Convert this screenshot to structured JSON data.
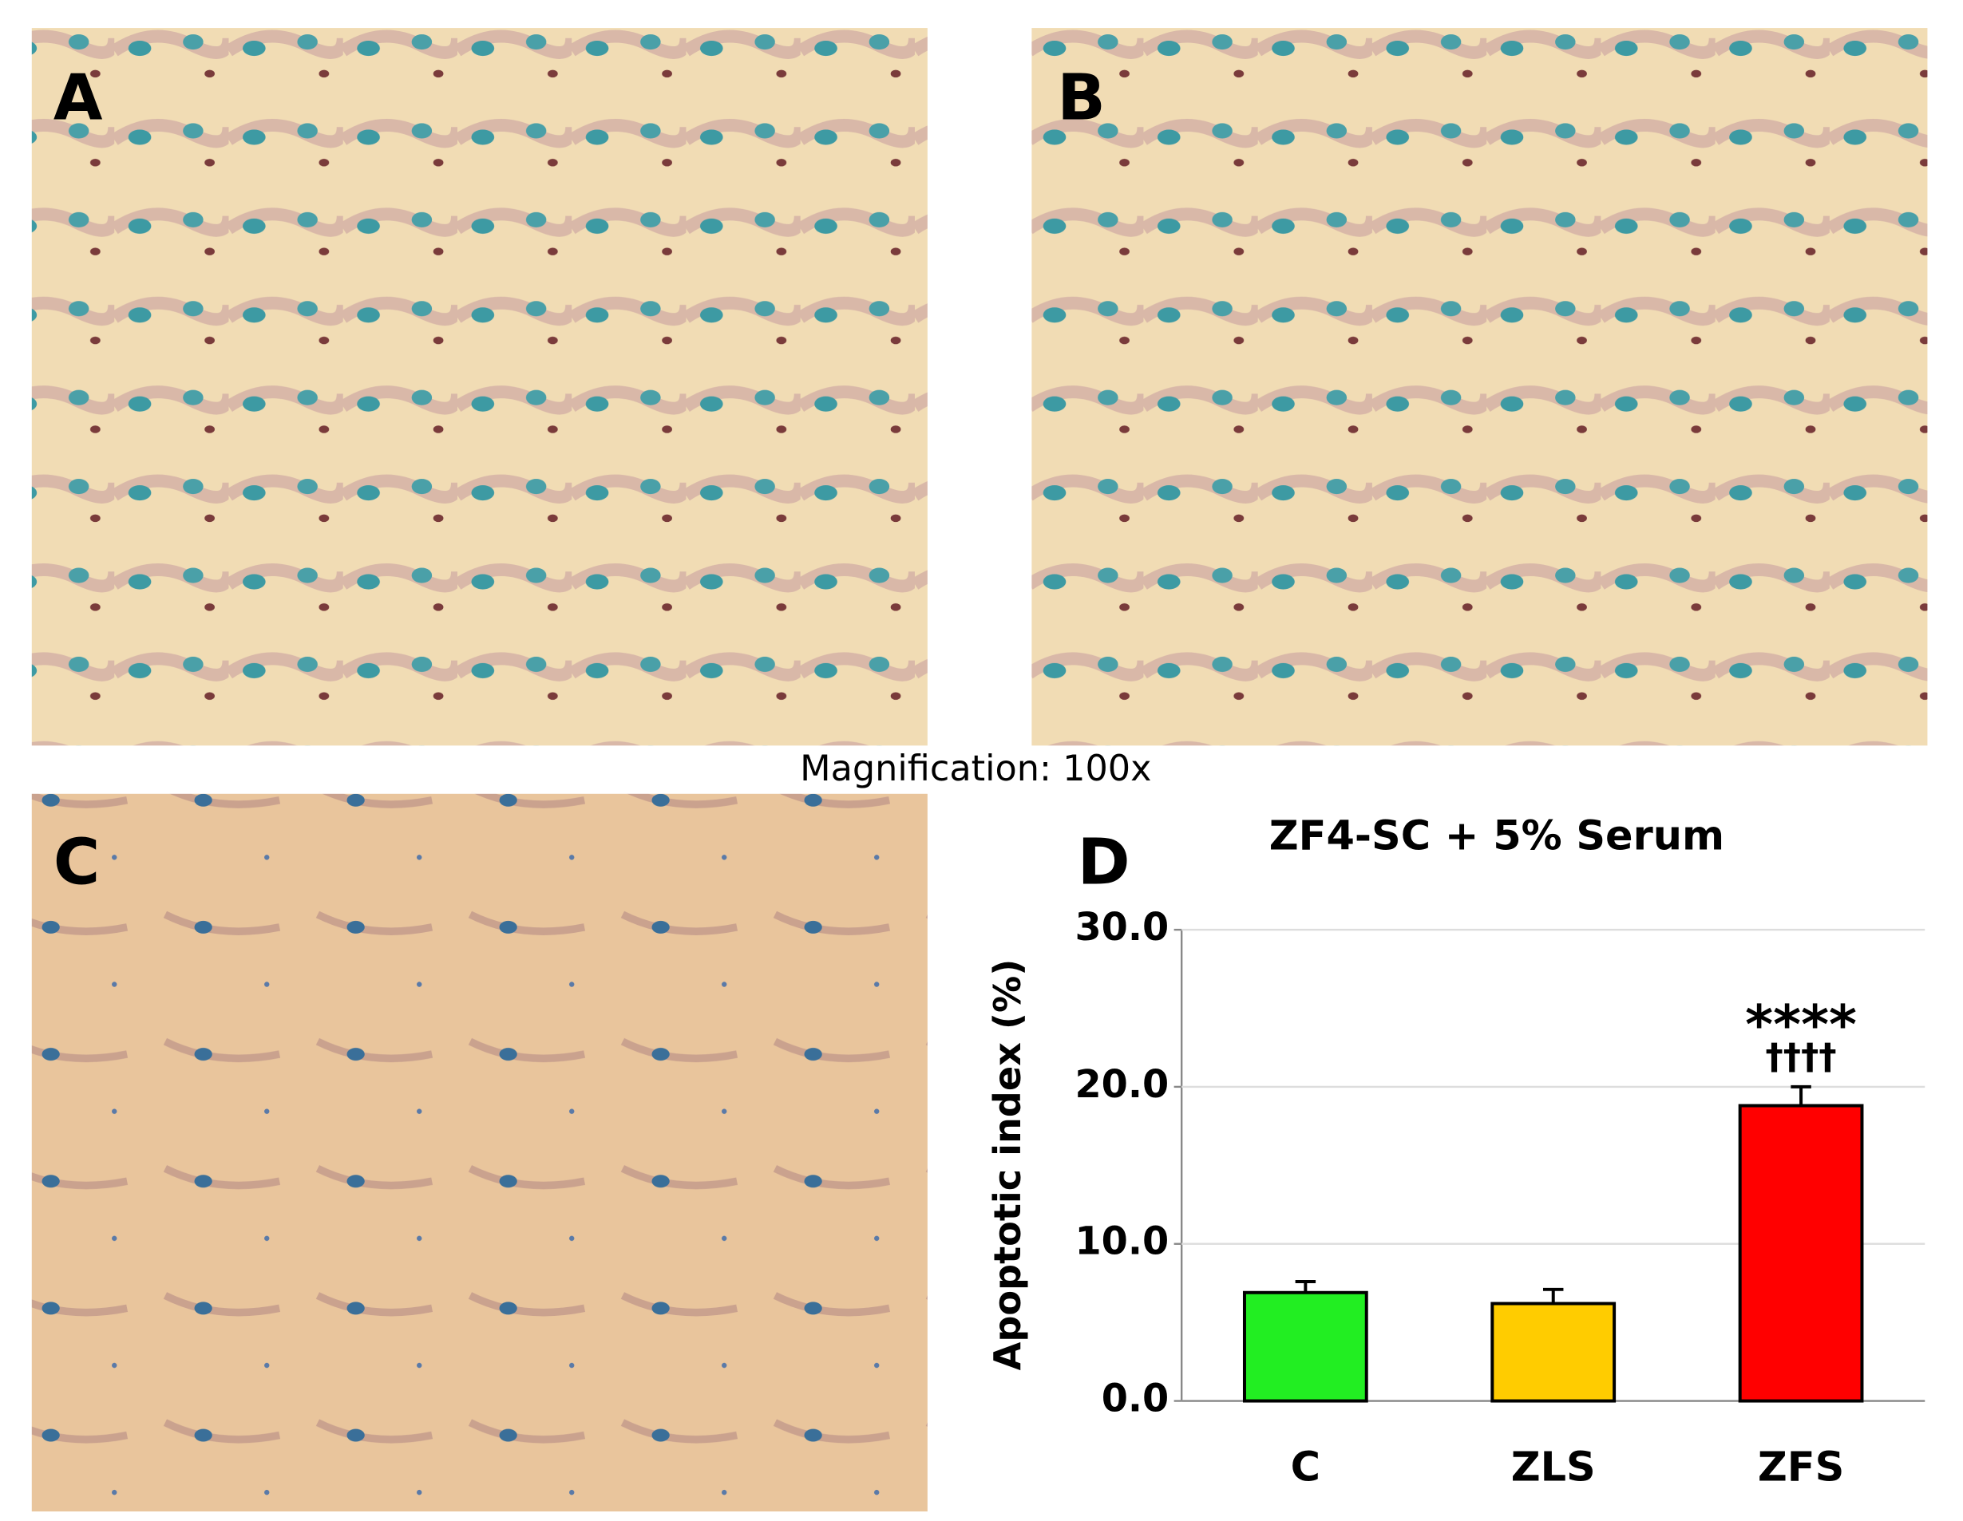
{
  "panels": [
    "A",
    "B",
    "C"
  ],
  "magnification": "Magnification: 100x",
  "chart_data": {
    "type": "bar",
    "panel_label": "D",
    "title": "ZF4-SC + 5% Serum",
    "y_label": "Apoptotic index (%)",
    "categories": [
      "C",
      "ZLS",
      "ZFS"
    ],
    "values": [
      6.9,
      6.2,
      18.8
    ],
    "errors": [
      0.7,
      0.9,
      1.2
    ],
    "colors": [
      "#22ee22",
      "#ffcc00",
      "#ff0000"
    ],
    "annotations": [
      "****",
      "††††"
    ],
    "ylim": [
      0,
      30
    ],
    "yticks": [
      {
        "value": 0,
        "label": "0.0"
      },
      {
        "value": 10,
        "label": "10.0"
      },
      {
        "value": 20,
        "label": "20.0"
      },
      {
        "value": 30,
        "label": "30.0"
      }
    ],
    "grid": true
  }
}
